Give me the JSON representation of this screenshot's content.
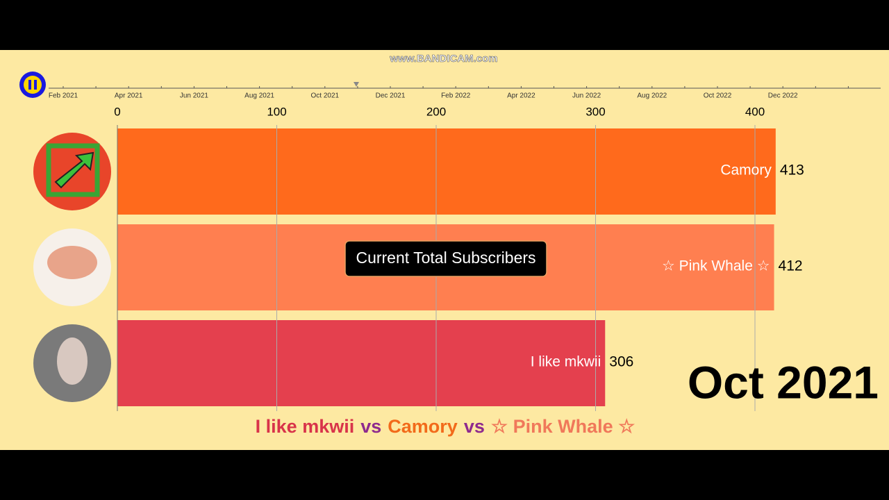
{
  "watermark": "www.BANDICAM.com",
  "timeline": {
    "labels": [
      "Feb 2021",
      "Apr 2021",
      "Jun 2021",
      "Aug 2021",
      "Oct 2021",
      "Dec 2021",
      "Feb 2022",
      "Apr 2022",
      "Jun 2022",
      "Aug 2022",
      "Oct 2022",
      "Dec 2022"
    ]
  },
  "chart_data": {
    "type": "bar",
    "orientation": "horizontal",
    "categories": [
      "Camory",
      "☆ Pink Whale ☆",
      "I like mkwii"
    ],
    "values": [
      413,
      412,
      306
    ],
    "colors": [
      "#ff6a1c",
      "#ff7f50",
      "#e4404e"
    ],
    "xlim": [
      0,
      450
    ],
    "xticks": [
      0,
      100,
      200,
      300,
      400
    ],
    "grid": true,
    "annotation": "Current Total Subscribers",
    "date": "Oct 2021",
    "title_parts": [
      {
        "text": "I like mkwii",
        "color": "#d8334a"
      },
      {
        "text": "vs",
        "color": "#8e2a8e"
      },
      {
        "text": "Camory",
        "color": "#f26a1a"
      },
      {
        "text": "vs",
        "color": "#8e2a8e"
      },
      {
        "text": "☆ Pink Whale ☆",
        "color": "#f0785a"
      }
    ]
  }
}
